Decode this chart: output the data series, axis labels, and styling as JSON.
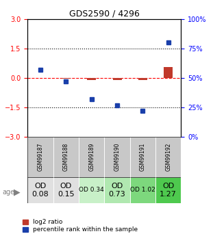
{
  "title": "GDS2590 / 4296",
  "samples": [
    "GSM99187",
    "GSM99188",
    "GSM99189",
    "GSM99190",
    "GSM99191",
    "GSM99192"
  ],
  "log2_ratio": [
    0.0,
    -0.05,
    -0.12,
    -0.12,
    -0.1,
    0.55
  ],
  "percentile_rank": [
    57,
    47,
    32,
    27,
    22,
    80
  ],
  "ylim_left": [
    -3,
    3
  ],
  "ylim_right": [
    0,
    100
  ],
  "yticks_left": [
    -3,
    -1.5,
    0,
    1.5,
    3
  ],
  "yticks_right": [
    0,
    25,
    50,
    75,
    100
  ],
  "age_labels": [
    "OD\n0.08",
    "OD\n0.15",
    "OD 0.34",
    "OD\n0.73",
    "OD 1.02",
    "OD\n1.27"
  ],
  "age_bg_colors": [
    "#e0e0e0",
    "#e0e0e0",
    "#c8f0c8",
    "#b0e8b0",
    "#7dd87d",
    "#4ec94e"
  ],
  "age_font_sizes": [
    8,
    8,
    6.5,
    8,
    6.5,
    8
  ],
  "bar_color_red": "#c0392b",
  "bar_color_blue": "#1a3faa",
  "cell_bg_color": "#c8c8c8",
  "legend_red": "log2 ratio",
  "legend_blue": "percentile rank within the sample"
}
